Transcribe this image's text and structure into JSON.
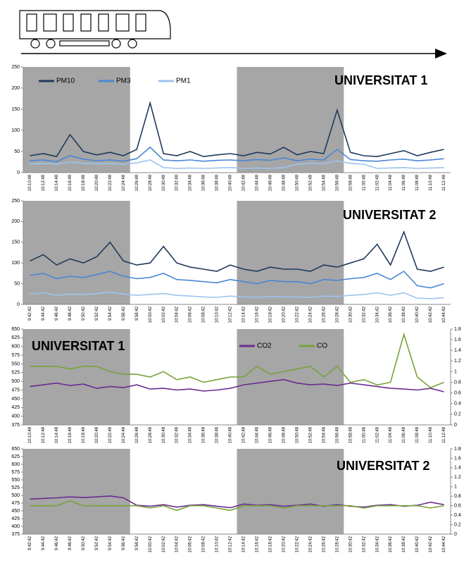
{
  "chart_data": [
    {
      "type": "line",
      "title": "UNIVERSITAT 1",
      "categories": [
        "10:10:48",
        "10:12:48",
        "10:14:48",
        "10:16:48",
        "10:18:48",
        "10:20:48",
        "10:22:48",
        "10:24:48",
        "10:26:48",
        "10:28:48",
        "10:30:48",
        "10:32:48",
        "10:34:48",
        "10:36:48",
        "10:38:48",
        "10:40:48",
        "10:42:48",
        "10:44:48",
        "10:46:48",
        "10:48:48",
        "10:50:48",
        "10:52:48",
        "10:54:48",
        "10:56:48",
        "10:58:48",
        "11:00:48",
        "11:02:48",
        "11:04:48",
        "11:06:48",
        "11:08:48",
        "11:10:48",
        "11:12:48"
      ],
      "series": [
        {
          "name": "PM10",
          "color": "#1f3a5c",
          "values": [
            40,
            45,
            38,
            90,
            50,
            42,
            48,
            40,
            55,
            165,
            45,
            40,
            50,
            38,
            42,
            45,
            40,
            48,
            44,
            60,
            42,
            50,
            45,
            148,
            48,
            40,
            38,
            45,
            52,
            40,
            48,
            55
          ]
        },
        {
          "name": "PM3",
          "color": "#4a86d4",
          "values": [
            28,
            30,
            26,
            40,
            32,
            28,
            30,
            27,
            33,
            60,
            30,
            28,
            30,
            27,
            29,
            30,
            28,
            31,
            29,
            35,
            28,
            32,
            30,
            55,
            31,
            28,
            27,
            30,
            32,
            28,
            30,
            33
          ]
        },
        {
          "name": "PM1",
          "color": "#9dc3ee",
          "values": [
            20,
            22,
            20,
            25,
            22,
            21,
            22,
            20,
            23,
            30,
            12,
            10,
            11,
            10,
            11,
            12,
            10,
            11,
            10,
            12,
            20,
            22,
            21,
            28,
            22,
            20,
            10,
            11,
            12,
            10,
            11,
            12
          ]
        }
      ],
      "ylim": [
        0,
        250
      ],
      "yticks": [
        0,
        50,
        100,
        150,
        200,
        250
      ],
      "legend": true
    },
    {
      "type": "line",
      "title": "UNIVERSITAT 2",
      "categories": [
        "9:42:42",
        "9:44:42",
        "9:46:42",
        "9:48:42",
        "9:50:42",
        "9:52:42",
        "9:54:42",
        "9:56:42",
        "9:58:42",
        "10:00:42",
        "10:02:42",
        "10:04:42",
        "10:06:42",
        "10:08:42",
        "10:10:42",
        "10:12:42",
        "10:14:42",
        "10:16:42",
        "10:18:42",
        "10:20:42",
        "10:22:42",
        "10:24:42",
        "10:26:42",
        "10:28:42",
        "10:30:42",
        "10:32:42",
        "10:34:42",
        "10:36:42",
        "10:38:42",
        "10:40:42",
        "10:42:42",
        "10:44:42"
      ],
      "series": [
        {
          "color": "#1f3a5c",
          "values": [
            105,
            120,
            95,
            110,
            100,
            115,
            150,
            105,
            95,
            100,
            140,
            100,
            90,
            85,
            80,
            95,
            85,
            80,
            90,
            85,
            85,
            80,
            95,
            90,
            100,
            110,
            145,
            95,
            175,
            85,
            80,
            90
          ]
        },
        {
          "color": "#4a86d4",
          "values": [
            70,
            75,
            62,
            68,
            65,
            72,
            80,
            68,
            62,
            65,
            75,
            60,
            58,
            55,
            52,
            60,
            55,
            50,
            58,
            55,
            55,
            50,
            60,
            58,
            62,
            65,
            75,
            60,
            80,
            45,
            40,
            50
          ]
        },
        {
          "color": "#9dc3ee",
          "values": [
            25,
            28,
            22,
            25,
            24,
            26,
            30,
            25,
            22,
            24,
            26,
            22,
            20,
            18,
            17,
            20,
            18,
            17,
            19,
            18,
            18,
            17,
            20,
            19,
            22,
            24,
            28,
            22,
            28,
            15,
            14,
            16
          ]
        }
      ],
      "ylim": [
        0,
        250
      ],
      "yticks": [
        0,
        50,
        100,
        150,
        200,
        250
      ],
      "legend": false
    },
    {
      "type": "line",
      "title": "UNIVERSITAT 1",
      "categories": [
        "10:10:48",
        "10:12:48",
        "10:14:48",
        "10:16:48",
        "10:18:48",
        "10:20:48",
        "10:22:48",
        "10:24:48",
        "10:26:48",
        "10:28:48",
        "10:30:48",
        "10:32:48",
        "10:34:48",
        "10:36:48",
        "10:38:48",
        "10:40:48",
        "10:42:48",
        "10:44:48",
        "10:46:48",
        "10:48:48",
        "10:50:48",
        "10:52:48",
        "10:54:48",
        "10:56:48",
        "10:58:48",
        "11:00:48",
        "11:02:48",
        "11:04:48",
        "11:06:48",
        "11:08:48",
        "11:10:48",
        "11:12:48"
      ],
      "series": [
        {
          "name": "CO2",
          "color": "#6a2c91",
          "values": [
            485,
            490,
            495,
            488,
            492,
            480,
            485,
            482,
            490,
            478,
            480,
            475,
            478,
            472,
            475,
            480,
            490,
            495,
            500,
            505,
            495,
            490,
            492,
            488,
            495,
            490,
            485,
            480,
            478,
            475,
            480,
            470
          ]
        },
        {
          "name": "CO",
          "color": "#77a33a",
          "axis": "y2",
          "values": [
            1.1,
            1.1,
            1.1,
            1.05,
            1.1,
            1.1,
            1.0,
            0.95,
            0.95,
            0.9,
            1.0,
            0.85,
            0.9,
            0.8,
            0.85,
            0.9,
            0.9,
            1.1,
            0.95,
            1.0,
            1.05,
            1.1,
            0.9,
            1.1,
            0.8,
            0.85,
            0.75,
            0.8,
            1.7,
            0.9,
            0.7,
            0.8
          ]
        }
      ],
      "ylim": [
        375,
        650
      ],
      "yticks": [
        375,
        400,
        425,
        450,
        475,
        500,
        525,
        550,
        575,
        600,
        625,
        650
      ],
      "y2lim": [
        0,
        1.8
      ],
      "y2ticks": [
        0,
        0.2,
        0.4,
        0.6,
        0.8,
        1,
        1.2,
        1.4,
        1.6,
        1.8
      ],
      "legend": true
    },
    {
      "type": "line",
      "title": "UNIVERSITAT 2",
      "categories": [
        "9:42:42",
        "9:44:42",
        "9:46:42",
        "9:48:42",
        "9:50:42",
        "9:52:42",
        "9:54:42",
        "9:56:42",
        "9:58:42",
        "10:00:42",
        "10:02:42",
        "10:04:42",
        "10:06:42",
        "10:08:42",
        "10:10:42",
        "10:12:42",
        "10:14:42",
        "10:16:42",
        "10:18:42",
        "10:20:42",
        "10:22:42",
        "10:24:42",
        "10:26:42",
        "10:28:42",
        "10:30:42",
        "10:32:42",
        "10:34:42",
        "10:36:42",
        "10:38:42",
        "10:40:42",
        "10:42:42",
        "10:44:42"
      ],
      "series": [
        {
          "color": "#6a2c91",
          "values": [
            488,
            490,
            492,
            495,
            493,
            495,
            498,
            492,
            468,
            465,
            470,
            462,
            468,
            470,
            465,
            460,
            472,
            468,
            470,
            465,
            468,
            472,
            465,
            470,
            465,
            462,
            468,
            470,
            465,
            468,
            478,
            470
          ]
        },
        {
          "color": "#77a33a",
          "axis": "y2",
          "values": [
            0.6,
            0.6,
            0.6,
            0.7,
            0.6,
            0.6,
            0.6,
            0.6,
            0.6,
            0.55,
            0.6,
            0.5,
            0.6,
            0.6,
            0.55,
            0.5,
            0.6,
            0.6,
            0.6,
            0.55,
            0.6,
            0.6,
            0.6,
            0.6,
            0.6,
            0.55,
            0.6,
            0.6,
            0.6,
            0.6,
            0.55,
            0.6
          ]
        }
      ],
      "ylim": [
        375,
        650
      ],
      "yticks": [
        375,
        400,
        425,
        450,
        475,
        500,
        525,
        550,
        575,
        600,
        625,
        650
      ],
      "y2lim": [
        0,
        1.8
      ],
      "y2ticks": [
        0,
        0.2,
        0.4,
        0.6,
        0.8,
        1,
        1.2,
        1.4,
        1.6,
        1.8
      ],
      "legend": false
    }
  ]
}
